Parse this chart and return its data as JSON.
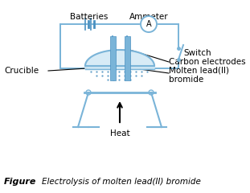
{
  "bg_color": "#ffffff",
  "line_color": "#7ab4d8",
  "dark_line": "#4a90c0",
  "liquid_color": "#d0e8f5",
  "title": "Figure",
  "caption": "Electrolysis of molten lead(II) bromide",
  "labels": {
    "batteries": "Batteries",
    "ammeter": "Ammeter",
    "switch": "Switch",
    "crucible": "Crucible",
    "electrodes": "Carbon electrodes",
    "molten": "Molten lead(II)\nbromide",
    "heat": "Heat"
  },
  "figsize": [
    3.11,
    2.4
  ],
  "dpi": 100
}
